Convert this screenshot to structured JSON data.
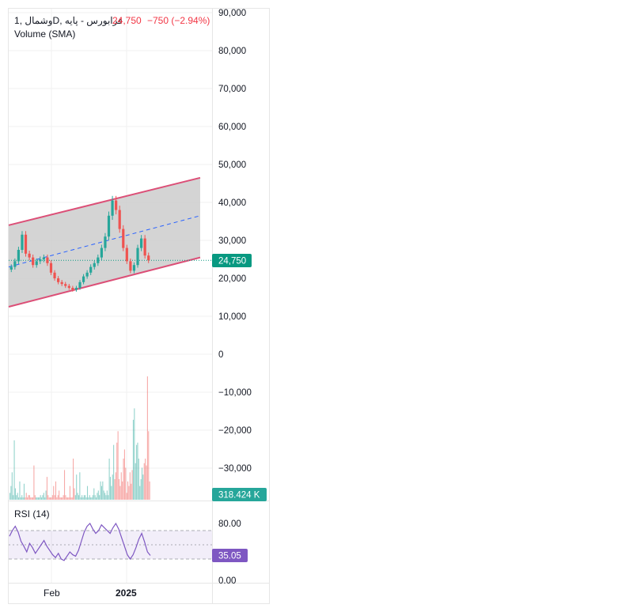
{
  "legend": {
    "symbol": "وشمال",
    "interval": "D",
    "count": "1",
    "name": "فرابورس - پایه",
    "last": "24,750",
    "change": "−750 (−2.94%)",
    "volume_label": "Volume (SMA)"
  },
  "rsi_legend": "RSI (14)",
  "price_badge": "24,750",
  "volume_badge": "318.424 K",
  "rsi_badge": "35.05",
  "colors": {
    "up": "#26a69a",
    "down": "#ef5350",
    "channel_line": "#dc4f77",
    "channel_fill": "#cccccc",
    "midline": "#2962ff",
    "rsi_line": "#7e57c2",
    "badge_green": "#089981",
    "badge_volume": "#26a69a",
    "badge_rsi": "#7e57c2"
  },
  "chart_data": [
    {
      "type": "line",
      "title": "",
      "note_style": "candlestick",
      "x_ticks": [
        "Feb",
        "2025"
      ],
      "y_ticks": [
        "90,000",
        "80,000",
        "70,000",
        "60,000",
        "50,000",
        "40,000",
        "30,000",
        "20,000",
        "10,000",
        "0",
        "−10,000",
        "−20,000",
        "−30,000"
      ],
      "ylim": [
        -38000,
        91000
      ],
      "y_tick_values": [
        90000,
        80000,
        70000,
        60000,
        50000,
        40000,
        30000,
        20000,
        10000,
        0,
        -10000,
        -20000,
        -30000
      ],
      "last_price": 24750,
      "channel": {
        "upper": [
          [
            0,
            34000
          ],
          [
            100,
            46500
          ]
        ],
        "lower": [
          [
            0,
            12500
          ],
          [
            100,
            25500
          ]
        ],
        "mid": [
          [
            0,
            23000
          ],
          [
            100,
            36500
          ]
        ]
      },
      "series": [
        {
          "values": [
            23000,
            24500,
            27500,
            31500,
            26500,
            25500,
            23500,
            24500,
            25000,
            25500,
            24000,
            21500,
            20000,
            19000,
            18500,
            18000,
            17500,
            17000,
            17500,
            19000,
            20500,
            21500,
            23000,
            24000,
            25500,
            28000,
            31000,
            36500,
            40500,
            38000,
            33000,
            28000,
            24500,
            22000,
            23500,
            28000,
            30500,
            26000,
            24750
          ]
        }
      ]
    },
    {
      "type": "bar",
      "title": "",
      "series": [
        {
          "name": "Volume (SMA)",
          "values": [
            3,
            6,
            12,
            2,
            26,
            5,
            2,
            3,
            1,
            8,
            1,
            2,
            1,
            7,
            1,
            3,
            1,
            2,
            2,
            1,
            1,
            1,
            15,
            2,
            1,
            1,
            1,
            1,
            2,
            1,
            2,
            3,
            1,
            4,
            10,
            2,
            1,
            1,
            1,
            2,
            6,
            2,
            8,
            1,
            2,
            4,
            1,
            1,
            1,
            2,
            13,
            2,
            1,
            1,
            1,
            6,
            1,
            1,
            18,
            5,
            2,
            11,
            3,
            2,
            12,
            1,
            2,
            1,
            2,
            2,
            1,
            6,
            1,
            2,
            1,
            1,
            2,
            5,
            2,
            1,
            3,
            4,
            2,
            8,
            6,
            8,
            4,
            3,
            2,
            4,
            2,
            18,
            10,
            6,
            11,
            24,
            9,
            12,
            25,
            30,
            9,
            6,
            12,
            8,
            18,
            22,
            14,
            3,
            8,
            6,
            12,
            7,
            13,
            35,
            40,
            16,
            24,
            25,
            18,
            6,
            9,
            14,
            11,
            16,
            18,
            15,
            54,
            30,
            8
          ]
        }
      ]
    },
    {
      "type": "line",
      "title": "",
      "y_ticks": [
        "80.00",
        "0.00"
      ],
      "ylim": [
        0,
        100
      ],
      "series": [
        {
          "name": "RSI (14)",
          "values": [
            62,
            70,
            76,
            68,
            55,
            48,
            40,
            52,
            46,
            38,
            44,
            50,
            56,
            48,
            42,
            36,
            32,
            38,
            30,
            28,
            34,
            40,
            36,
            34,
            42,
            55,
            68,
            76,
            80,
            72,
            66,
            70,
            78,
            74,
            70,
            66,
            74,
            80,
            72,
            60,
            48,
            36,
            30,
            36,
            46,
            58,
            66,
            54,
            40,
            35.05
          ]
        }
      ]
    }
  ]
}
